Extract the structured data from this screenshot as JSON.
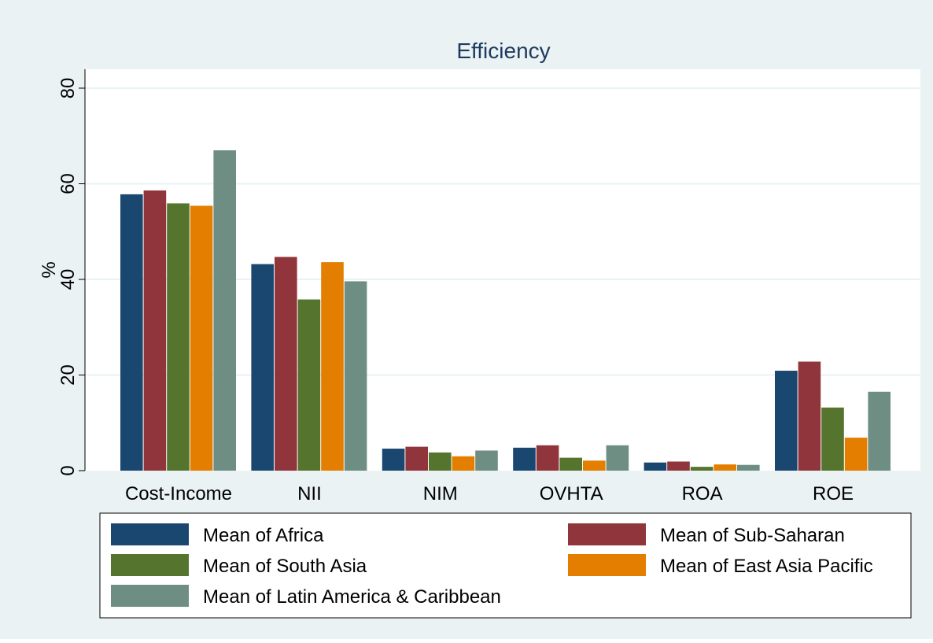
{
  "chart_data": {
    "type": "bar",
    "title": "Efficiency",
    "y_label": "%",
    "categories": [
      "Cost-Income",
      "NII",
      "NIM",
      "OVHTA",
      "ROA",
      "ROE"
    ],
    "series": [
      {
        "name": "Mean of Africa",
        "color": "#1a476f",
        "values": [
          57.8,
          43.2,
          4.6,
          4.8,
          1.7,
          20.9
        ]
      },
      {
        "name": "Mean of Sub-Saharan",
        "color": "#90353b",
        "values": [
          58.6,
          44.7,
          5.0,
          5.3,
          1.9,
          22.8
        ]
      },
      {
        "name": "Mean of South Asia",
        "color": "#55752f",
        "values": [
          55.9,
          35.8,
          3.8,
          2.7,
          0.8,
          13.2
        ]
      },
      {
        "name": "Mean of East Asia Pacific",
        "color": "#e37e00",
        "values": [
          55.4,
          43.6,
          3.0,
          2.1,
          1.3,
          6.9
        ]
      },
      {
        "name": "Mean of Latin America & Caribbean",
        "color": "#6e8e84",
        "values": [
          67.0,
          39.6,
          4.2,
          5.3,
          1.2,
          16.5
        ]
      }
    ],
    "ylim": [
      0,
      80
    ],
    "yticks": [
      0,
      20,
      40,
      60,
      80
    ],
    "grid": true
  }
}
